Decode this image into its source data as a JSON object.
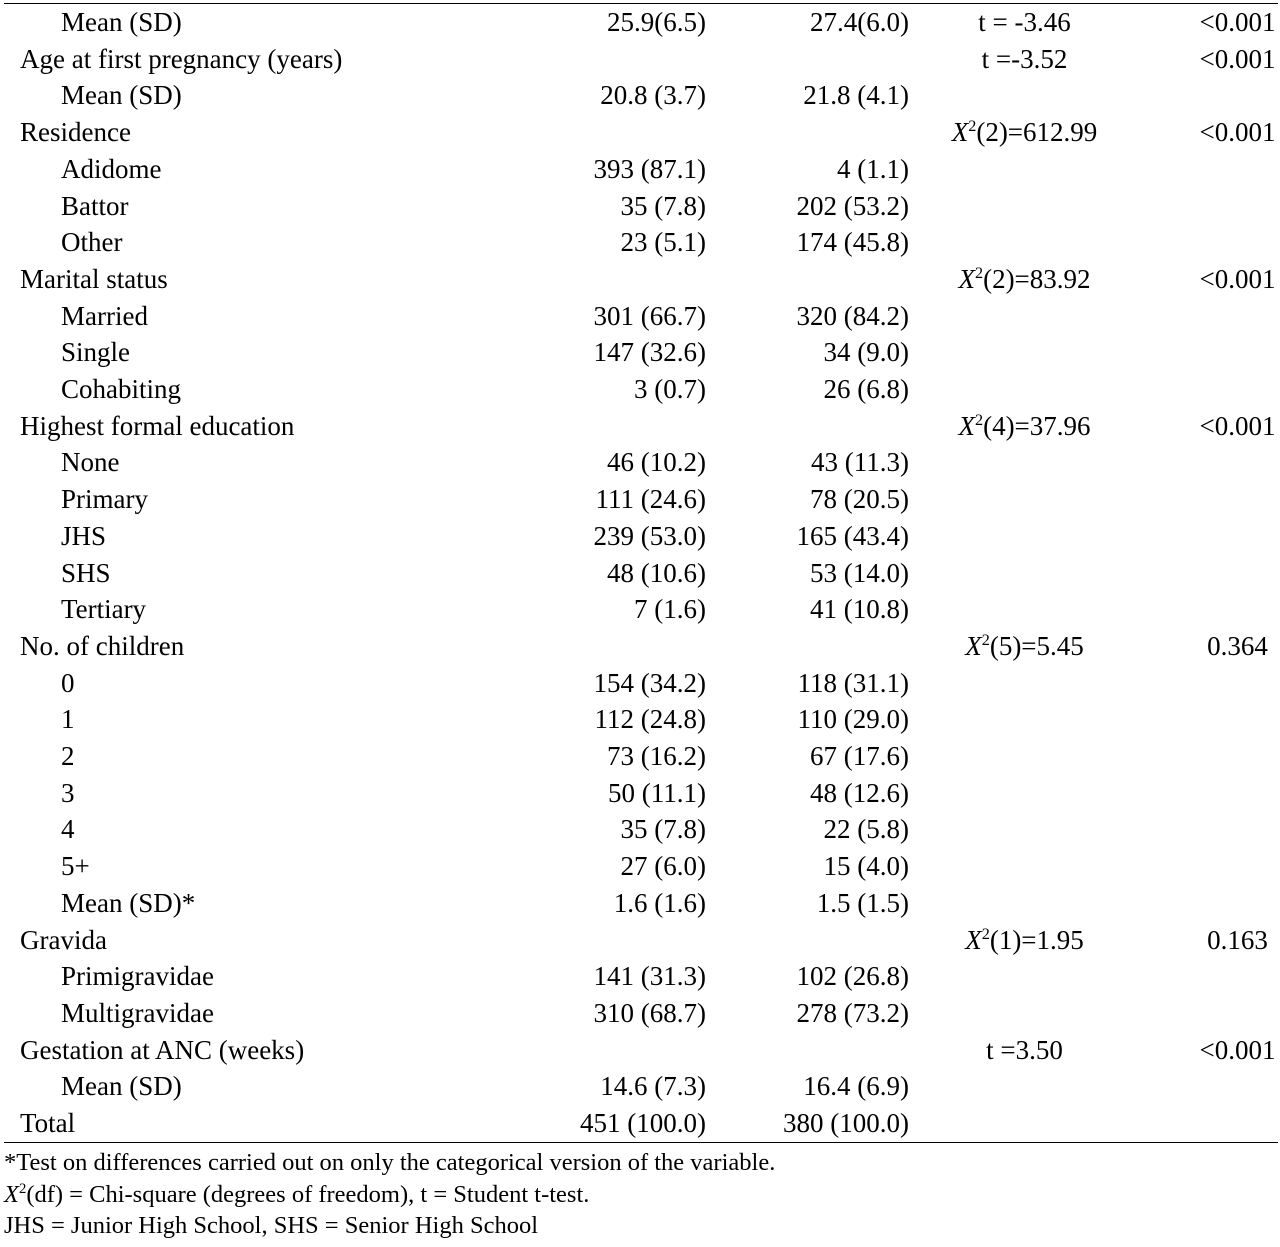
{
  "rows": [
    {
      "label": "Mean (SD)",
      "indent": 1,
      "g1": "25.9(6.5)",
      "g2": "27.4(6.0)",
      "test_text": "t = -3.46",
      "p": "<0.001"
    },
    {
      "label": "Age at first pregnancy (years)",
      "indent": 0,
      "g1": "",
      "g2": "",
      "test_text": "t =-3.52",
      "p": "<0.001"
    },
    {
      "label": "Mean (SD)",
      "indent": 1,
      "g1": "20.8 (3.7)",
      "g2": "21.8 (4.1)",
      "test_text": "",
      "p": ""
    },
    {
      "label": "Residence",
      "indent": 0,
      "g1": "",
      "g2": "",
      "chi_df": "2",
      "chi_val": "612.99",
      "p": "<0.001"
    },
    {
      "label": "Adidome",
      "indent": 1,
      "g1": "393 (87.1)",
      "g2": "4 (1.1)",
      "test_text": "",
      "p": ""
    },
    {
      "label": "Battor",
      "indent": 1,
      "g1": "35 (7.8)",
      "g2": "202 (53.2)",
      "test_text": "",
      "p": ""
    },
    {
      "label": "Other",
      "indent": 1,
      "g1": "23 (5.1)",
      "g2": "174 (45.8)",
      "test_text": "",
      "p": ""
    },
    {
      "label": "Marital status",
      "indent": 0,
      "g1": "",
      "g2": "",
      "chi_df": "2",
      "chi_val": "83.92",
      "p": "<0.001"
    },
    {
      "label": "Married",
      "indent": 1,
      "g1": "301 (66.7)",
      "g2": "320 (84.2)",
      "test_text": "",
      "p": ""
    },
    {
      "label": "Single",
      "indent": 1,
      "g1": "147 (32.6)",
      "g2": "34 (9.0)",
      "test_text": "",
      "p": ""
    },
    {
      "label": "Cohabiting",
      "indent": 1,
      "g1": "3 (0.7)",
      "g2": "26 (6.8)",
      "test_text": "",
      "p": ""
    },
    {
      "label": "Highest formal education",
      "indent": 0,
      "g1": "",
      "g2": "",
      "chi_df": "4",
      "chi_val": "37.96",
      "p": "<0.001"
    },
    {
      "label": "None",
      "indent": 1,
      "g1": "46 (10.2)",
      "g2": "43 (11.3)",
      "test_text": "",
      "p": ""
    },
    {
      "label": "Primary",
      "indent": 1,
      "g1": "111 (24.6)",
      "g2": "78 (20.5)",
      "test_text": "",
      "p": ""
    },
    {
      "label": "JHS",
      "indent": 1,
      "g1": "239 (53.0)",
      "g2": "165 (43.4)",
      "test_text": "",
      "p": ""
    },
    {
      "label": "SHS",
      "indent": 1,
      "g1": "48 (10.6)",
      "g2": "53 (14.0)",
      "test_text": "",
      "p": ""
    },
    {
      "label": "Tertiary",
      "indent": 1,
      "g1": "7 (1.6)",
      "g2": "41 (10.8)",
      "test_text": "",
      "p": ""
    },
    {
      "label": "No. of children",
      "indent": 0,
      "g1": "",
      "g2": "",
      "chi_df": "5",
      "chi_val": "5.45",
      "p": "0.364"
    },
    {
      "label": "0",
      "indent": 1,
      "g1": "154 (34.2)",
      "g2": "118 (31.1)",
      "test_text": "",
      "p": ""
    },
    {
      "label": "1",
      "indent": 1,
      "g1": "112 (24.8)",
      "g2": "110 (29.0)",
      "test_text": "",
      "p": ""
    },
    {
      "label": "2",
      "indent": 1,
      "g1": "73 (16.2)",
      "g2": "67 (17.6)",
      "test_text": "",
      "p": ""
    },
    {
      "label": "3",
      "indent": 1,
      "g1": "50 (11.1)",
      "g2": "48 (12.6)",
      "test_text": "",
      "p": ""
    },
    {
      "label": "4",
      "indent": 1,
      "g1": "35 (7.8)",
      "g2": "22 (5.8)",
      "test_text": "",
      "p": ""
    },
    {
      "label": "5+",
      "indent": 1,
      "g1": "27 (6.0)",
      "g2": "15 (4.0)",
      "test_text": "",
      "p": ""
    },
    {
      "label": "Mean (SD)*",
      "indent": 1,
      "g1": "1.6 (1.6)",
      "g2": "1.5 (1.5)",
      "test_text": "",
      "p": ""
    },
    {
      "label": "Gravida",
      "indent": 0,
      "g1": "",
      "g2": "",
      "chi_df": "1",
      "chi_val": "1.95",
      "p": "0.163"
    },
    {
      "label": "Primigravidae",
      "indent": 1,
      "g1": "141 (31.3)",
      "g2": "102 (26.8)",
      "test_text": "",
      "p": ""
    },
    {
      "label": "Multigravidae",
      "indent": 1,
      "g1": "310 (68.7)",
      "g2": "278 (73.2)",
      "test_text": "",
      "p": ""
    },
    {
      "label": "Gestation at ANC (weeks)",
      "indent": 0,
      "g1": "",
      "g2": "",
      "test_text": "t =3.50",
      "p": "<0.001"
    },
    {
      "label": "Mean (SD)",
      "indent": 1,
      "g1": "14.6 (7.3)",
      "g2": "16.4 (6.9)",
      "test_text": "",
      "p": ""
    },
    {
      "label": "Total",
      "indent": 0,
      "g1": "451 (100.0)",
      "g2": "380 (100.0)",
      "test_text": "",
      "p": ""
    }
  ],
  "footnotes": {
    "note1": "*Test on differences carried out on only the categorical version of the variable.",
    "note2_rest": "(df) = Chi-square (degrees of freedom), t = Student t-test.",
    "note3": "JHS = Junior High School, SHS = Senior High School"
  }
}
